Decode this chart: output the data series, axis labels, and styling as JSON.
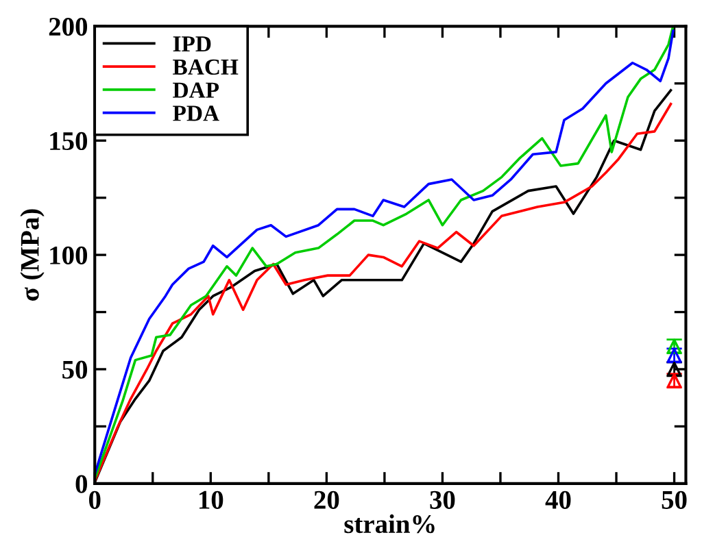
{
  "chart_data": {
    "type": "line",
    "xlabel": "strain%",
    "ylabel": "σ (MPa)",
    "xlim": [
      0,
      51
    ],
    "ylim": [
      0,
      200
    ],
    "xticks": [
      0,
      {
        "value": 5,
        "label": null
      },
      10,
      {
        "value": 15,
        "label": null
      },
      20,
      {
        "value": 25,
        "label": null
      },
      30,
      {
        "value": 35,
        "label": null
      },
      40,
      {
        "value": 45,
        "label": null
      },
      50
    ],
    "yticks": [
      0,
      {
        "value": 25,
        "label": null
      },
      50,
      {
        "value": 75,
        "label": null
      },
      100,
      {
        "value": 125,
        "label": null
      },
      150,
      {
        "value": 175,
        "label": null
      },
      200
    ],
    "grid": false,
    "legend": "top left",
    "marker": "none",
    "line_style": "solid",
    "series": [
      {
        "name": "IPD",
        "color": "#000000",
        "x": [
          0,
          2.2,
          3.5,
          4.7,
          5.9,
          7.5,
          9,
          10.2,
          11.8,
          13.8,
          15.7,
          17.1,
          18.9,
          19.7,
          21.3,
          23.6,
          24.9,
          26.5,
          28.4,
          31.6,
          32.7,
          34.3,
          37.4,
          39.8,
          41.3,
          43.3,
          44.8,
          47.1,
          48.3,
          49.7
        ],
        "values": [
          0.5,
          27,
          37,
          45,
          58,
          64,
          76,
          82,
          86,
          93,
          96,
          83,
          89,
          82,
          89,
          89,
          89,
          89,
          105,
          97,
          105,
          119,
          128,
          130,
          118,
          134,
          150,
          146,
          163,
          172
        ]
      },
      {
        "name": "BACH",
        "color": "#ff0000",
        "x": [
          0,
          2,
          3.1,
          4.5,
          5.3,
          6.7,
          8.3,
          9.8,
          10.2,
          11.6,
          12.8,
          14,
          15.4,
          16.5,
          18.1,
          20.1,
          22,
          23.6,
          24.9,
          26.5,
          28,
          29.6,
          31.2,
          32.7,
          35.1,
          38.2,
          40.5,
          42.9,
          44.1,
          45.2,
          46.8,
          48.3,
          49.7
        ],
        "values": [
          1,
          25,
          37,
          50,
          58,
          70,
          74,
          82,
          74,
          89,
          76,
          89,
          96,
          87,
          89,
          91,
          91,
          100,
          99,
          95,
          106,
          103,
          110,
          104,
          117,
          121,
          123,
          130,
          136,
          142,
          153,
          154,
          166
        ]
      },
      {
        "name": "DAP",
        "color": "#00cc00",
        "x": [
          0,
          2.4,
          3.5,
          4.9,
          5.3,
          6.5,
          8.3,
          9.6,
          11.4,
          12.2,
          13.6,
          14.8,
          15.7,
          17.3,
          19.3,
          20.9,
          22.4,
          24,
          24.9,
          26.9,
          28.8,
          30,
          31.6,
          33.5,
          35.1,
          36.6,
          38.6,
          40.2,
          41.7,
          44.1,
          44.6,
          46,
          47.1,
          48.3,
          49.5,
          49.9
        ],
        "values": [
          2,
          36,
          54,
          56,
          64,
          65,
          78,
          82,
          95,
          91,
          103,
          95,
          96,
          101,
          103,
          109,
          115,
          115,
          113,
          118,
          124,
          113,
          124,
          128,
          134,
          142,
          151,
          139,
          140,
          161,
          145,
          169,
          177,
          181,
          192,
          200
        ]
      },
      {
        "name": "PDA",
        "color": "#0000ff",
        "x": [
          0,
          2,
          3.1,
          4.7,
          6.1,
          6.7,
          8.1,
          9.4,
          10.2,
          11.4,
          14,
          15.2,
          16.5,
          19.3,
          20.9,
          22.4,
          24,
          24.9,
          26.7,
          28.8,
          30.8,
          32.7,
          34.3,
          35.9,
          37.8,
          39.8,
          40.5,
          42.1,
          44.1,
          46.4,
          47.6,
          48.8,
          49.5,
          49.9
        ],
        "values": [
          4,
          37,
          55,
          72,
          82,
          87,
          94,
          97,
          104,
          99,
          111,
          113,
          108,
          113,
          120,
          120,
          117,
          124,
          121,
          131,
          133,
          124,
          126,
          133,
          144,
          145,
          159,
          164,
          175,
          184,
          181,
          176,
          186,
          198
        ]
      },
      {
        "type": "scatter",
        "marker": "triangle",
        "color": "#00cc00",
        "x": [
          50
        ],
        "values": [
          60
        ],
        "errors": [
          3
        ]
      },
      {
        "type": "scatter",
        "marker": "triangle",
        "color": "#0000ff",
        "x": [
          50
        ],
        "values": [
          56
        ],
        "errors": [
          3
        ]
      },
      {
        "type": "scatter",
        "marker": "triangle",
        "color": "#000000",
        "x": [
          50
        ],
        "values": [
          50
        ],
        "errors": [
          3
        ]
      },
      {
        "type": "scatter",
        "marker": "triangle",
        "color": "#ff0000",
        "x": [
          50
        ],
        "values": [
          45
        ],
        "errors": [
          3
        ]
      }
    ]
  }
}
